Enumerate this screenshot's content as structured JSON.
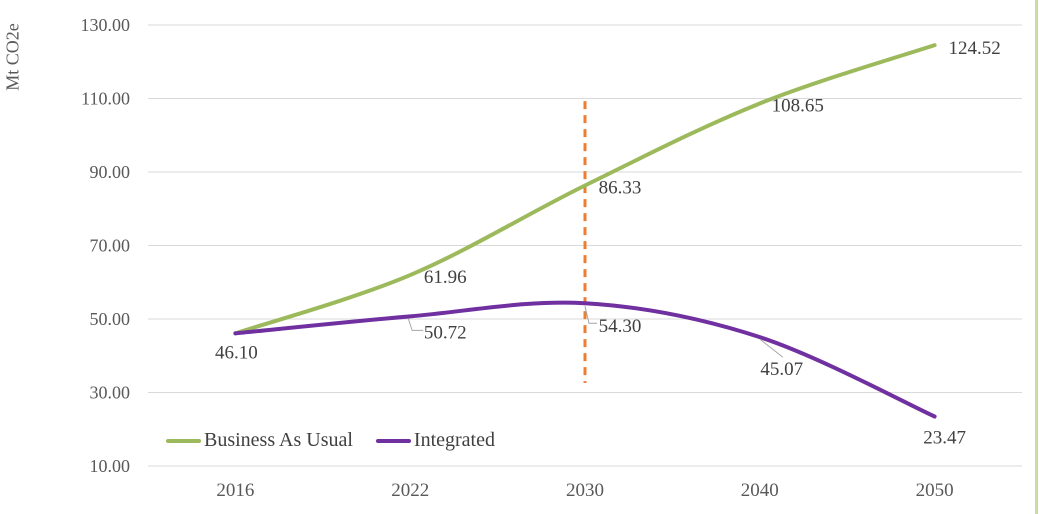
{
  "chart_data": {
    "type": "line",
    "title": "",
    "xlabel": "",
    "ylabel": "Mt CO2e",
    "categories": [
      "2016",
      "2022",
      "2030",
      "2040",
      "2050"
    ],
    "ylim": [
      10,
      130
    ],
    "y_ticks": [
      10,
      30,
      50,
      70,
      90,
      110,
      130
    ],
    "y_tick_labels": [
      "10.00",
      "30.00",
      "50.00",
      "70.00",
      "90.00",
      "110.00",
      "130.00"
    ],
    "grid": true,
    "legend_position": "bottom-left",
    "colors": {
      "grid": "#D9D9D9",
      "axis_text": "#595959",
      "data_label_text": "#404040",
      "leader_line": "#A6A6A6"
    },
    "series": [
      {
        "name": "Business As Usual",
        "color": "#9CBA5C",
        "smooth": true,
        "line_width": 4,
        "values": [
          46.1,
          61.96,
          86.33,
          108.65,
          124.52
        ],
        "point_labels": [
          {
            "text": "46.10",
            "dx": 1,
            "dy": 19
          },
          {
            "text": "61.96",
            "dx": 35,
            "dy": 2
          },
          {
            "text": "86.33",
            "dx": 35,
            "dy": 2
          },
          {
            "text": "108.65",
            "dx": 38,
            "dy": 2
          },
          {
            "text": "124.52",
            "dx": 40,
            "dy": 3
          }
        ]
      },
      {
        "name": "Integrated",
        "color": "#7030A0",
        "smooth": true,
        "line_width": 4,
        "values": [
          46.1,
          50.72,
          54.3,
          45.07,
          23.47
        ],
        "point_labels": [
          null,
          {
            "text": "50.72",
            "dx": 35,
            "dy": 16,
            "leader": [
              [
                -2,
                2
              ],
              [
                2,
                14
              ],
              [
                13,
                14
              ]
            ]
          },
          {
            "text": "54.30",
            "dx": 35,
            "dy": 23,
            "leader": [
              [
                0,
                3
              ],
              [
                4,
                20
              ],
              [
                12,
                20
              ]
            ]
          },
          {
            "text": "45.07",
            "dx": 22,
            "dy": 32,
            "leader": [
              [
                0,
                2
              ],
              [
                23,
                20
              ]
            ]
          },
          {
            "text": "23.47",
            "dx": 10,
            "dy": 21
          }
        ]
      }
    ],
    "marker_line": {
      "category": "2030",
      "y_from": 32.6,
      "y_to": 109.3,
      "color": "#ED7D31",
      "style": "dashed"
    }
  },
  "window": {
    "right_edge_color": "#C9DCA4"
  }
}
